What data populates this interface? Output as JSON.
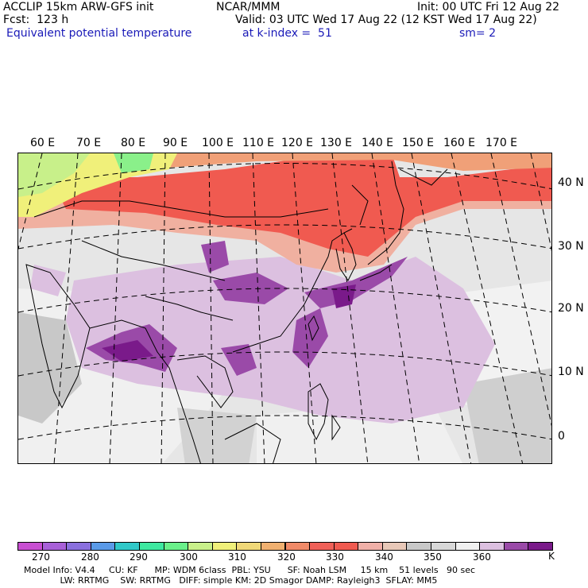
{
  "header": {
    "left_line1": "ACCLIP 15km ARW-GFS init",
    "left_line2": "Fcst:  123 h",
    "left_line3": "Equivalent potential temperature",
    "center_line1": "NCAR/MMM",
    "right_line1": "Init: 00 UTC Fri 12 Aug 22",
    "right_line2": "Valid: 03 UTC Wed 17 Aug 22 (12 KST Wed 17 Aug 22)",
    "level_text": "at k-index =  51",
    "smooth_text": "sm= 2"
  },
  "map": {
    "longitude_labels": [
      "60 E",
      "70 E",
      "80 E",
      "90 E",
      "100 E",
      "110 E",
      "120 E",
      "130 E",
      "140 E",
      "150 E",
      "160 E",
      "170 E"
    ],
    "latitude_labels": [
      "40 N",
      "30 N",
      "20 N",
      "10 N",
      "0"
    ]
  },
  "colorbar": {
    "unit": "K",
    "labels": [
      "270",
      "280",
      "290",
      "300",
      "310",
      "320",
      "330",
      "340",
      "350",
      "360"
    ],
    "colors": [
      "#c84fd2",
      "#a860d8",
      "#8a70de",
      "#5a9ae8",
      "#30c8c8",
      "#3ee8a0",
      "#6af08a",
      "#c8f08a",
      "#f0f07a",
      "#f0d878",
      "#f0b070",
      "#f08a68",
      "#f06058",
      "#f05a50",
      "#f0b0a8",
      "#e8c8b8",
      "#c8c8c8",
      "#d8d8d8",
      "#f0f0f0",
      "#dcc0e0",
      "#9a4aa8",
      "#7a1a8a"
    ]
  },
  "footer": {
    "line1": "Model Info: V4.4     CU: KF      MP: WDM 6class  PBL: YSU      SF: Noah LSM     15 km    51 levels   90 sec",
    "line2": "             LW: RRTMG    SW: RRTMG   DIFF: simple KM: 2D Smagor DAMP: Rayleigh3  SFLAY: MM5"
  },
  "colors": {
    "purple_light": "#dcc0e0",
    "purple_mid": "#9a4aa8",
    "purple_dark": "#7a1a8a",
    "grey_light": "#f0f0f0",
    "grey_mid": "#d8d8d8",
    "grey_dark": "#c0c0c0",
    "red": "#f05a50",
    "orange": "#f0a078",
    "yellow": "#f0f07a",
    "green": "#8af08a"
  }
}
